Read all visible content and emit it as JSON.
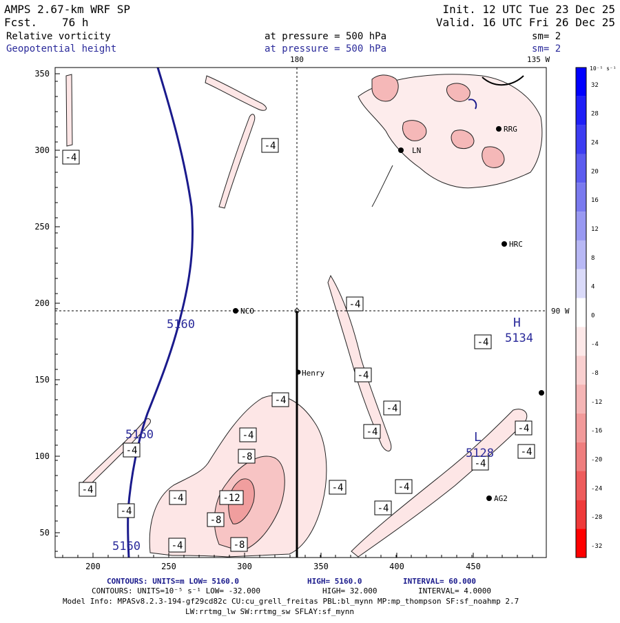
{
  "header": {
    "model": "AMPS 2.67-km WRF SP",
    "fcst_label": "Fcst.",
    "fcst_value": "76 h",
    "init": "Init. 12 UTC Tue 23 Dec 25",
    "valid": "Valid. 16 UTC Fri 26 Dec 25",
    "field1": "Relative vorticity",
    "field1_level": "at pressure =  500 hPa",
    "field1_sm": "sm= 2",
    "field2": "Geopotential height",
    "field2_level": "at pressure =  500 hPa",
    "field2_sm": "sm= 2"
  },
  "map": {
    "meridian_label": "180",
    "meridian_label2": "135 W",
    "meridian_label3": "90 W",
    "x_ticks": [
      "200",
      "250",
      "300",
      "350",
      "400",
      "450"
    ],
    "y_ticks": [
      "350",
      "300",
      "250",
      "200",
      "150",
      "100",
      "50"
    ],
    "stations": [
      {
        "name": "NCO"
      },
      {
        "name": "Henry"
      },
      {
        "name": "HRC"
      },
      {
        "name": "RRG"
      },
      {
        "name": "LN"
      },
      {
        "name": "AG2"
      }
    ],
    "height_labels": [
      "5160",
      "5160",
      "5160",
      "5134",
      "5128"
    ],
    "high_label": "H",
    "low_label": "L",
    "vort_labels": [
      "-4",
      "-4",
      "-4",
      "-4",
      "-4",
      "-4",
      "-4",
      "-4",
      "-4",
      "-4",
      "-4",
      "-4",
      "-4",
      "-4",
      "-4",
      "-4",
      "-4",
      "-4",
      "-4",
      "-4",
      "-8",
      "-8",
      "-8",
      "-12"
    ],
    "colors": {
      "height_contour": "#1a1a8c",
      "vort_neg_light": "#fbe2e2",
      "vort_neg_mid": "#f4b4b4",
      "vort_neg_strong": "#ee9090",
      "text_blue": "#2a2a9a"
    }
  },
  "colorbar": {
    "unit": "10⁻⁵ s⁻¹",
    "labels": [
      "32",
      "28",
      "24",
      "20",
      "16",
      "12",
      "8",
      "4",
      "0",
      "-4",
      "-8",
      "-12",
      "-16",
      "-20",
      "-24",
      "-28",
      "-32"
    ],
    "colors": [
      "#0000ff",
      "#1f1ff7",
      "#3d3df2",
      "#5c5cef",
      "#7a7aef",
      "#9999f2",
      "#b8b8f5",
      "#dadaf9",
      "#ffffff",
      "#fde8e8",
      "#f9cfcf",
      "#f5b5b5",
      "#f29a9a",
      "#ef7e7e",
      "#ee5c5c",
      "#ef3a3a",
      "#ff0000"
    ]
  },
  "footer": {
    "line1_a": "CONTOURS:  UNITS=m  LOW=  5160.0",
    "line1_b": "HIGH=  5160.0",
    "line1_c": "INTERVAL=  60.000",
    "line2_a": "CONTOURS:  UNITS=10⁻⁵ s⁻¹  LOW= -32.000",
    "line2_b": "HIGH=  32.000",
    "line2_c": "INTERVAL=  4.0000",
    "line3": "Model Info: MPASv8.2.3-194-gf29cd82c CU:cu_grell_freitas PBL:bl_mynn MP:mp_thompson SF:sf_noahmp 2.7",
    "line4": "LW:rrtmg_lw SW:rrtmg_sw SFLAY:sf_mynn"
  }
}
